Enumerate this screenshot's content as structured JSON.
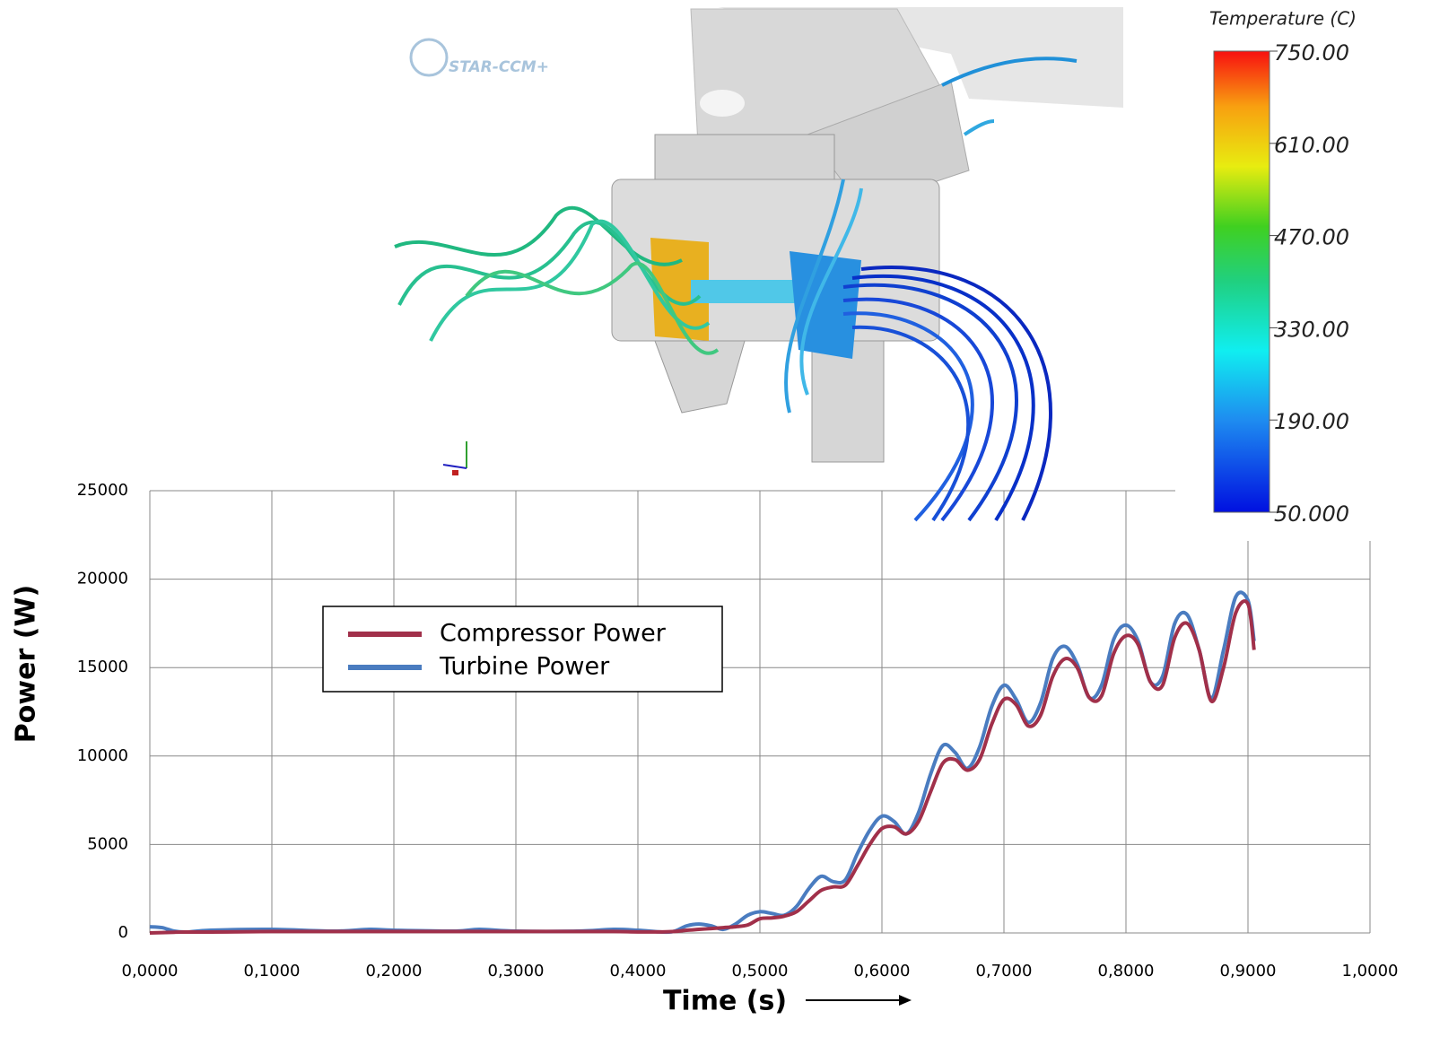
{
  "chart_data": {
    "type": "line",
    "xlabel": "Time (s)",
    "ylabel": "Power (W)",
    "x": [
      0,
      0.01,
      0.02,
      0.03,
      0.05,
      0.1,
      0.15,
      0.18,
      0.2,
      0.25,
      0.27,
      0.3,
      0.35,
      0.38,
      0.4,
      0.42,
      0.43,
      0.44,
      0.45,
      0.46,
      0.47,
      0.48,
      0.49,
      0.5,
      0.51,
      0.52,
      0.53,
      0.54,
      0.55,
      0.56,
      0.57,
      0.58,
      0.59,
      0.6,
      0.61,
      0.62,
      0.63,
      0.64,
      0.65,
      0.66,
      0.67,
      0.68,
      0.69,
      0.7,
      0.71,
      0.72,
      0.73,
      0.74,
      0.75,
      0.76,
      0.77,
      0.78,
      0.79,
      0.8,
      0.81,
      0.82,
      0.83,
      0.84,
      0.85,
      0.86,
      0.87,
      0.88,
      0.89,
      0.9,
      0.905
    ],
    "series": [
      {
        "name": "Compressor Power",
        "color": "#a1304a",
        "values": [
          0,
          20,
          40,
          50,
          50,
          80,
          80,
          80,
          80,
          80,
          80,
          80,
          80,
          80,
          60,
          60,
          80,
          150,
          200,
          250,
          300,
          350,
          450,
          800,
          850,
          950,
          1200,
          1800,
          2400,
          2600,
          2700,
          3800,
          5000,
          5900,
          6000,
          5600,
          6300,
          8000,
          9600,
          9800,
          9200,
          9800,
          11800,
          13200,
          12900,
          11700,
          12300,
          14500,
          15500,
          15000,
          13300,
          13400,
          15800,
          16800,
          16300,
          14200,
          14000,
          16700,
          17500,
          16000,
          13100,
          15000,
          18100,
          18600,
          16000
        ]
      },
      {
        "name": "Turbine Power",
        "color": "#4a7cc0",
        "values": [
          350,
          300,
          100,
          50,
          150,
          200,
          100,
          200,
          150,
          100,
          200,
          100,
          100,
          200,
          150,
          50,
          100,
          400,
          500,
          400,
          200,
          500,
          1000,
          1200,
          1100,
          1000,
          1500,
          2500,
          3200,
          2900,
          3000,
          4500,
          5800,
          6600,
          6300,
          5600,
          6800,
          9000,
          10600,
          10200,
          9300,
          10500,
          12800,
          14000,
          13200,
          11900,
          13000,
          15500,
          16200,
          15200,
          13300,
          14000,
          16600,
          17400,
          16500,
          14200,
          14500,
          17500,
          18000,
          16000,
          13300,
          16000,
          19000,
          18800,
          16500
        ]
      }
    ],
    "xlim": [
      0,
      1
    ],
    "xticks": [
      {
        "value": 0,
        "label": "0,0000"
      },
      {
        "value": 0.1,
        "label": "0,1000"
      },
      {
        "value": 0.2,
        "label": "0,2000"
      },
      {
        "value": 0.3,
        "label": "0,3000"
      },
      {
        "value": 0.4,
        "label": "0,4000"
      },
      {
        "value": 0.5,
        "label": "0,5000"
      },
      {
        "value": 0.6,
        "label": "0,6000"
      },
      {
        "value": 0.7,
        "label": "0,7000"
      },
      {
        "value": 0.8,
        "label": "0,8000"
      },
      {
        "value": 0.9,
        "label": "0,9000"
      },
      {
        "value": 1,
        "label": "1,0000"
      }
    ],
    "ylim": [
      0,
      25000
    ],
    "yticks": [
      0,
      5000,
      10000,
      15000,
      20000,
      25000
    ],
    "grid": true
  },
  "colorbar": {
    "title": "Temperature (C)",
    "range": [
      50,
      750
    ],
    "ticks": [
      {
        "value": 750,
        "label": "750.00"
      },
      {
        "value": 610,
        "label": "610.00"
      },
      {
        "value": 470,
        "label": "470.00"
      },
      {
        "value": 330,
        "label": "330.00"
      },
      {
        "value": 190,
        "label": "190.00"
      },
      {
        "value": 50,
        "label": "50.000"
      }
    ]
  },
  "logo": "STAR-CCM+"
}
